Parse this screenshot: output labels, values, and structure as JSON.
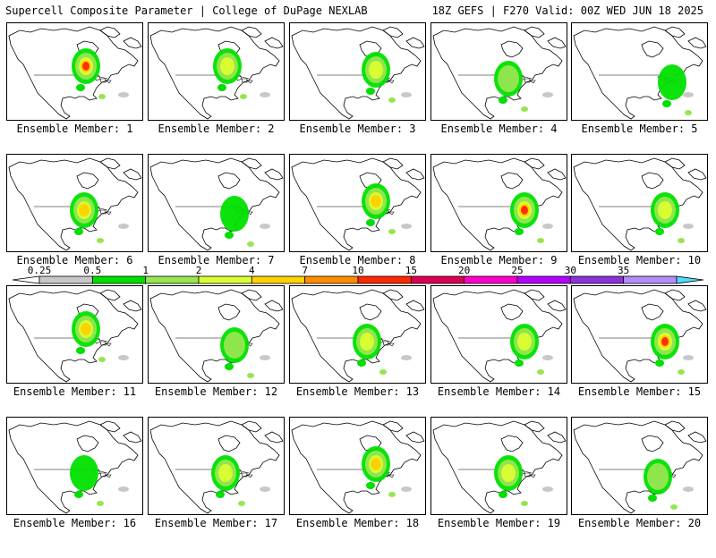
{
  "header": {
    "title_left": "Supercell Composite Parameter | College of DuPage NEXLAB",
    "title_right": "18Z GEFS | F270 Valid: 00Z WED JUN 18 2025"
  },
  "panels": [
    {
      "label": "Ensemble Member: 1",
      "intensity": 5,
      "focus": "north-central"
    },
    {
      "label": "Ensemble Member: 2",
      "intensity": 3,
      "focus": "north-central"
    },
    {
      "label": "Ensemble Member: 3",
      "intensity": 3,
      "focus": "upper-midwest"
    },
    {
      "label": "Ensemble Member: 4",
      "intensity": 2,
      "focus": "plains"
    },
    {
      "label": "Ensemble Member: 5",
      "intensity": 1,
      "focus": "east"
    },
    {
      "label": "Ensemble Member: 6",
      "intensity": 4,
      "focus": "plains"
    },
    {
      "label": "Ensemble Member: 7",
      "intensity": 1,
      "focus": "midwest"
    },
    {
      "label": "Ensemble Member: 8",
      "intensity": 4,
      "focus": "upper-midwest"
    },
    {
      "label": "Ensemble Member: 9",
      "intensity": 5,
      "focus": "great-lakes"
    },
    {
      "label": "Ensemble Member: 10",
      "intensity": 3,
      "focus": "great-lakes"
    },
    {
      "label": "Ensemble Member: 11",
      "intensity": 4,
      "focus": "north-central"
    },
    {
      "label": "Ensemble Member: 12",
      "intensity": 2,
      "focus": "midwest"
    },
    {
      "label": "Ensemble Member: 13",
      "intensity": 3,
      "focus": "plains"
    },
    {
      "label": "Ensemble Member: 14",
      "intensity": 3,
      "focus": "great-lakes"
    },
    {
      "label": "Ensemble Member: 15",
      "intensity": 5,
      "focus": "great-lakes"
    },
    {
      "label": "Ensemble Member: 16",
      "intensity": 1,
      "focus": "plains"
    },
    {
      "label": "Ensemble Member: 17",
      "intensity": 3,
      "focus": "plains"
    },
    {
      "label": "Ensemble Member: 18",
      "intensity": 4,
      "focus": "upper-midwest"
    },
    {
      "label": "Ensemble Member: 19",
      "intensity": 3,
      "focus": "plains"
    },
    {
      "label": "Ensemble Member: 20",
      "intensity": 2,
      "focus": "midwest"
    }
  ],
  "colorbar": {
    "labels": [
      "0.25",
      "0.5",
      "1",
      "2",
      "4",
      "7",
      "10",
      "15",
      "20",
      "25",
      "30",
      "35"
    ],
    "colors": [
      "#ffffff",
      "#c8c8c8",
      "#00e000",
      "#96e650",
      "#dcff32",
      "#ffd200",
      "#ff8c00",
      "#ff2800",
      "#dc0050",
      "#ff00c8",
      "#b400ff",
      "#8c32dc",
      "#b48cff",
      "#50dcff"
    ]
  }
}
